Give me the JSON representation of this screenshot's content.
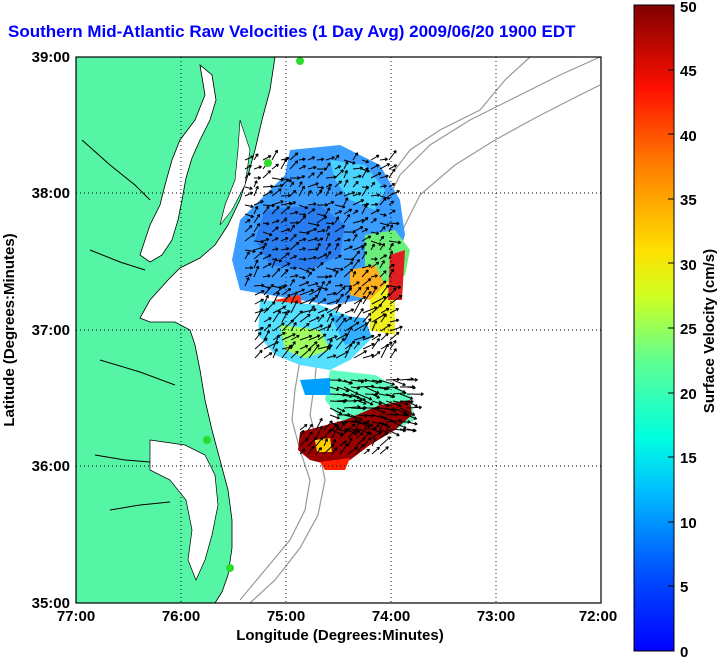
{
  "title": "Southern Mid-Atlantic Raw Velocities (1 Day Avg) 2009/06/20 1900 EDT",
  "map": {
    "xlabel": "Longitude (Degrees:Minutes)",
    "ylabel": "Latitude (Degrees:Minutes)",
    "x_ticks": [
      "77:00",
      "76:00",
      "75:00",
      "74:00",
      "73:00",
      "72:00"
    ],
    "y_ticks": [
      "39:00",
      "38:00",
      "37:00",
      "36:00",
      "35:00"
    ],
    "lon_range": [
      -77,
      -72
    ],
    "lat_range": [
      35,
      39
    ],
    "grid": "dotted",
    "land_color": "#55f5a5",
    "water_color": "#ffffff"
  },
  "colorbar": {
    "label": "Surface Velocity (cm/s)",
    "ticks": [
      "0",
      "5",
      "10",
      "15",
      "20",
      "25",
      "30",
      "35",
      "40",
      "45",
      "50"
    ],
    "range": [
      0,
      50
    ],
    "colormap": "jet"
  }
}
